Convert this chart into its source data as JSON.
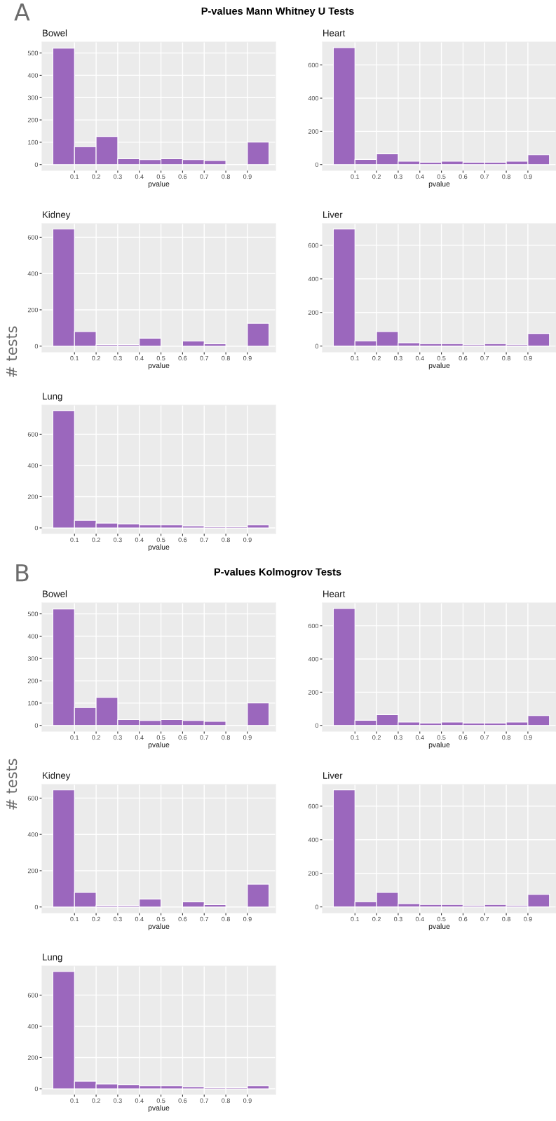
{
  "chart_data": [
    {
      "type": "histogram",
      "title": "Bowel",
      "xlabel": "pvalue",
      "annotations": [
        "A",
        "P-values Mann Whitney U Tests"
      ],
      "color": "#9b67bd",
      "bins": [
        0,
        0.1,
        0.2,
        0.3,
        0.4,
        0.5,
        0.6,
        0.7,
        0.8,
        0.9,
        1.0
      ],
      "values": [
        522,
        80,
        126,
        26,
        22,
        26,
        22,
        18,
        0,
        101
      ],
      "xlim": [
        -0.05,
        1.03
      ],
      "xticks": [
        0.1,
        0.2,
        0.3,
        0.4,
        0.5,
        0.6,
        0.7,
        0.8,
        0.9
      ],
      "ylim": [
        -26,
        549
      ],
      "yticks": [
        0,
        100,
        200,
        300,
        400,
        500
      ],
      "grid": true
    },
    {
      "type": "histogram",
      "title": "Heart",
      "xlabel": "pvalue",
      "color": "#9b67bd",
      "bins": [
        0,
        0.1,
        0.2,
        0.3,
        0.4,
        0.5,
        0.6,
        0.7,
        0.8,
        0.9,
        1.0
      ],
      "values": [
        704,
        31,
        65,
        20,
        14,
        20,
        14,
        14,
        20,
        59
      ],
      "xlim": [
        -0.05,
        1.03
      ],
      "xticks": [
        0.1,
        0.2,
        0.3,
        0.4,
        0.5,
        0.6,
        0.7,
        0.8,
        0.9
      ],
      "ylim": [
        -35,
        738
      ],
      "yticks": [
        0,
        200,
        400,
        600
      ],
      "grid": true
    },
    {
      "type": "histogram",
      "title": "Kidney",
      "xlabel": "pvalue",
      "ylabel": "# tests",
      "color": "#9b67bd",
      "bins": [
        0,
        0.1,
        0.2,
        0.3,
        0.4,
        0.5,
        0.6,
        0.7,
        0.8,
        0.9,
        1.0
      ],
      "values": [
        645,
        80,
        8,
        8,
        44,
        0,
        28,
        13,
        0,
        126
      ],
      "xlim": [
        -0.05,
        1.03
      ],
      "xticks": [
        0.1,
        0.2,
        0.3,
        0.4,
        0.5,
        0.6,
        0.7,
        0.8,
        0.9
      ],
      "ylim": [
        -32,
        675
      ],
      "yticks": [
        0,
        200,
        400,
        600
      ],
      "grid": true
    },
    {
      "type": "histogram",
      "title": "Liver",
      "xlabel": "pvalue",
      "color": "#9b67bd",
      "bins": [
        0,
        0.1,
        0.2,
        0.3,
        0.4,
        0.5,
        0.6,
        0.7,
        0.8,
        0.9,
        1.0
      ],
      "values": [
        697,
        31,
        86,
        19,
        14,
        14,
        8,
        14,
        8,
        75
      ],
      "xlim": [
        -0.05,
        1.03
      ],
      "xticks": [
        0.1,
        0.2,
        0.3,
        0.4,
        0.5,
        0.6,
        0.7,
        0.8,
        0.9
      ],
      "ylim": [
        -35,
        729
      ],
      "yticks": [
        0,
        200,
        400,
        600
      ],
      "grid": true
    },
    {
      "type": "histogram",
      "title": "Lung",
      "xlabel": "pvalue",
      "color": "#9b67bd",
      "bins": [
        0,
        0.1,
        0.2,
        0.3,
        0.4,
        0.5,
        0.6,
        0.7,
        0.8,
        0.9,
        1.0
      ],
      "values": [
        751,
        49,
        31,
        25,
        19,
        19,
        13,
        7,
        7,
        19
      ],
      "xlim": [
        -0.05,
        1.03
      ],
      "xticks": [
        0.1,
        0.2,
        0.3,
        0.4,
        0.5,
        0.6,
        0.7,
        0.8,
        0.9
      ],
      "ylim": [
        -36,
        786
      ],
      "yticks": [
        0,
        200,
        400,
        600
      ],
      "grid": true
    },
    {
      "type": "histogram",
      "title": "Bowel",
      "xlabel": "pvalue",
      "annotations": [
        "B",
        "P-values Kolmogrov Tests"
      ],
      "color": "#9b67bd",
      "bins": [
        0,
        0.1,
        0.2,
        0.3,
        0.4,
        0.5,
        0.6,
        0.7,
        0.8,
        0.9,
        1.0
      ],
      "values": [
        522,
        80,
        126,
        26,
        22,
        26,
        22,
        18,
        0,
        101
      ],
      "xlim": [
        -0.05,
        1.03
      ],
      "xticks": [
        0.1,
        0.2,
        0.3,
        0.4,
        0.5,
        0.6,
        0.7,
        0.8,
        0.9
      ],
      "ylim": [
        -26,
        549
      ],
      "yticks": [
        0,
        100,
        200,
        300,
        400,
        500
      ],
      "grid": true
    },
    {
      "type": "histogram",
      "title": "Heart",
      "xlabel": "pvalue",
      "color": "#9b67bd",
      "bins": [
        0,
        0.1,
        0.2,
        0.3,
        0.4,
        0.5,
        0.6,
        0.7,
        0.8,
        0.9,
        1.0
      ],
      "values": [
        704,
        31,
        65,
        20,
        14,
        20,
        14,
        14,
        20,
        59
      ],
      "xlim": [
        -0.05,
        1.03
      ],
      "xticks": [
        0.1,
        0.2,
        0.3,
        0.4,
        0.5,
        0.6,
        0.7,
        0.8,
        0.9
      ],
      "ylim": [
        -35,
        738
      ],
      "yticks": [
        0,
        200,
        400,
        600
      ],
      "grid": true
    },
    {
      "type": "histogram",
      "title": "Kidney",
      "xlabel": "pvalue",
      "ylabel": "# tests",
      "color": "#9b67bd",
      "bins": [
        0,
        0.1,
        0.2,
        0.3,
        0.4,
        0.5,
        0.6,
        0.7,
        0.8,
        0.9,
        1.0
      ],
      "values": [
        645,
        80,
        8,
        8,
        44,
        0,
        28,
        13,
        0,
        126
      ],
      "xlim": [
        -0.05,
        1.03
      ],
      "xticks": [
        0.1,
        0.2,
        0.3,
        0.4,
        0.5,
        0.6,
        0.7,
        0.8,
        0.9
      ],
      "ylim": [
        -32,
        675
      ],
      "yticks": [
        0,
        200,
        400,
        600
      ],
      "grid": true
    },
    {
      "type": "histogram",
      "title": "Liver",
      "xlabel": "pvalue",
      "color": "#9b67bd",
      "bins": [
        0,
        0.1,
        0.2,
        0.3,
        0.4,
        0.5,
        0.6,
        0.7,
        0.8,
        0.9,
        1.0
      ],
      "values": [
        697,
        31,
        86,
        19,
        14,
        14,
        8,
        14,
        8,
        75
      ],
      "xlim": [
        -0.05,
        1.03
      ],
      "xticks": [
        0.1,
        0.2,
        0.3,
        0.4,
        0.5,
        0.6,
        0.7,
        0.8,
        0.9
      ],
      "ylim": [
        -35,
        729
      ],
      "yticks": [
        0,
        200,
        400,
        600
      ],
      "grid": true
    },
    {
      "type": "histogram",
      "title": "Lung",
      "xlabel": "pvalue",
      "color": "#9b67bd",
      "bins": [
        0,
        0.1,
        0.2,
        0.3,
        0.4,
        0.5,
        0.6,
        0.7,
        0.8,
        0.9,
        1.0
      ],
      "values": [
        751,
        49,
        31,
        25,
        19,
        19,
        13,
        7,
        7,
        19
      ],
      "xlim": [
        -0.05,
        1.03
      ],
      "xticks": [
        0.1,
        0.2,
        0.3,
        0.4,
        0.5,
        0.6,
        0.7,
        0.8,
        0.9
      ],
      "ylim": [
        -36,
        786
      ],
      "yticks": [
        0,
        200,
        400,
        600
      ],
      "grid": true
    }
  ]
}
